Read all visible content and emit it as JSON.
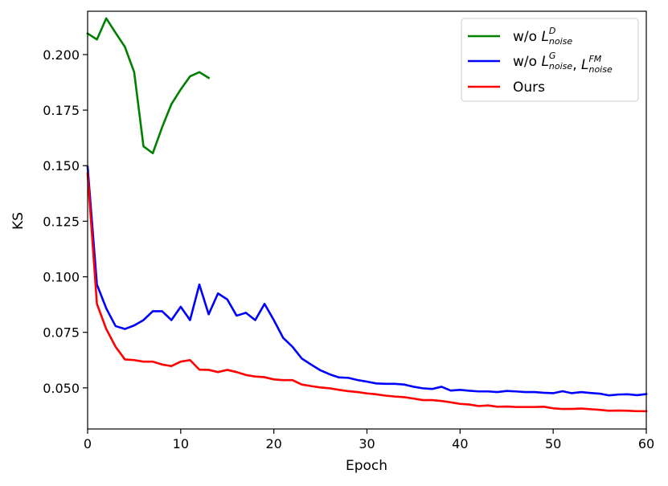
{
  "chart_data": {
    "type": "line",
    "xlabel": "Epoch",
    "ylabel": "KS",
    "xlim": [
      0,
      60
    ],
    "ylim": [
      0.0315,
      0.2195
    ],
    "xticks": [
      "0",
      "10",
      "20",
      "30",
      "40",
      "50",
      "60"
    ],
    "yticks": [
      "0.050",
      "0.075",
      "0.100",
      "0.125",
      "0.150",
      "0.175",
      "0.200"
    ],
    "grid": false,
    "legend_position": "top-right",
    "series": [
      {
        "name": "w/o L^D_noise",
        "legend": {
          "pre": "w/o ",
          "base": "L",
          "sup": "D",
          "sub": "noise"
        },
        "color": "#008000",
        "x": [
          0,
          1,
          2,
          3,
          4,
          5,
          6,
          7,
          8,
          9,
          10,
          11,
          12,
          13
        ],
        "y": [
          0.2095,
          0.2068,
          0.2163,
          0.2098,
          0.2035,
          0.1921,
          0.1587,
          0.1556,
          0.1673,
          0.1777,
          0.1843,
          0.1902,
          0.1921,
          0.1895
        ]
      },
      {
        "name": "w/o L^G_noise, L^FM_noise",
        "legend": {
          "pre": "w/o ",
          "base": "L",
          "sup": "G",
          "sub": "noise",
          "mid": ", ",
          "base2": "L",
          "sup2": "FM",
          "sub2": "noise"
        },
        "color": "#0000ff",
        "x": [
          0,
          1,
          2,
          3,
          4,
          5,
          6,
          7,
          8,
          9,
          10,
          11,
          12,
          13,
          14,
          15,
          16,
          17,
          18,
          19,
          20,
          21,
          22,
          23,
          24,
          25,
          26,
          27,
          28,
          29,
          30,
          31,
          32,
          33,
          34,
          35,
          36,
          37,
          38,
          39,
          40,
          41,
          42,
          43,
          44,
          45,
          46,
          47,
          48,
          49,
          50,
          51,
          52,
          53,
          54,
          55,
          56,
          57,
          58,
          59,
          60
        ],
        "y": [
          0.1495,
          0.0965,
          0.0858,
          0.0778,
          0.0765,
          0.0781,
          0.0805,
          0.0845,
          0.0845,
          0.0805,
          0.0865,
          0.0805,
          0.0965,
          0.0831,
          0.0925,
          0.0898,
          0.0825,
          0.0838,
          0.0805,
          0.0878,
          0.0805,
          0.0725,
          0.0685,
          0.0632,
          0.0605,
          0.0579,
          0.0561,
          0.0547,
          0.0545,
          0.0535,
          0.0528,
          0.052,
          0.0518,
          0.0518,
          0.0515,
          0.0505,
          0.0498,
          0.0495,
          0.0505,
          0.0488,
          0.0491,
          0.0487,
          0.0484,
          0.0484,
          0.0481,
          0.0486,
          0.0484,
          0.0481,
          0.0481,
          0.0478,
          0.0476,
          0.0485,
          0.0476,
          0.0481,
          0.0477,
          0.0474,
          0.0466,
          0.047,
          0.0471,
          0.0467,
          0.0472
        ]
      },
      {
        "name": "Ours",
        "legend": {
          "pre": "Ours"
        },
        "color": "#ff0000",
        "x": [
          0,
          1,
          2,
          3,
          4,
          5,
          6,
          7,
          8,
          9,
          10,
          11,
          12,
          13,
          14,
          15,
          16,
          17,
          18,
          19,
          20,
          21,
          22,
          23,
          24,
          25,
          26,
          27,
          28,
          29,
          30,
          31,
          32,
          33,
          34,
          35,
          36,
          37,
          38,
          39,
          40,
          41,
          42,
          43,
          44,
          45,
          46,
          47,
          48,
          49,
          50,
          51,
          52,
          53,
          54,
          55,
          56,
          57,
          58,
          59,
          60
        ],
        "y": [
          0.1465,
          0.0878,
          0.0765,
          0.0685,
          0.0628,
          0.0625,
          0.0618,
          0.0618,
          0.0605,
          0.0598,
          0.0618,
          0.0625,
          0.0582,
          0.0581,
          0.0571,
          0.0581,
          0.0571,
          0.0558,
          0.0551,
          0.0548,
          0.0538,
          0.0535,
          0.0535,
          0.0515,
          0.0508,
          0.0502,
          0.0498,
          0.0491,
          0.0485,
          0.0481,
          0.0475,
          0.0471,
          0.0465,
          0.0461,
          0.0458,
          0.0452,
          0.0445,
          0.0445,
          0.0441,
          0.0435,
          0.0428,
          0.0425,
          0.0418,
          0.0421,
          0.0415,
          0.0416,
          0.0414,
          0.0414,
          0.0414,
          0.0415,
          0.0408,
          0.0405,
          0.0405,
          0.0407,
          0.0404,
          0.0401,
          0.0397,
          0.0398,
          0.0397,
          0.0395,
          0.0395
        ]
      }
    ]
  }
}
